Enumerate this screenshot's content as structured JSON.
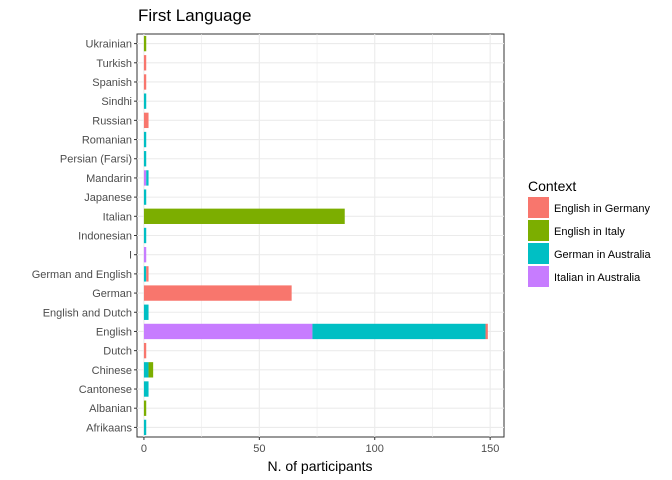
{
  "chart_data": {
    "type": "bar",
    "orientation": "horizontal",
    "stacked": true,
    "title": "First Language",
    "xlabel": "N. of participants",
    "ylabel": "",
    "xlim": [
      -3,
      156
    ],
    "xticks": [
      0,
      50,
      100,
      150
    ],
    "grid": true,
    "legend_title": "Context",
    "legend_position": "right",
    "categories": [
      "Afrikaans",
      "Albanian",
      "Cantonese",
      "Chinese",
      "Dutch",
      "English",
      "English and Dutch",
      "German",
      "German and English",
      "I",
      "Indonesian",
      "Italian",
      "Japanese",
      "Mandarin",
      "Persian (Farsi)",
      "Romanian",
      "Russian",
      "Sindhi",
      "Spanish",
      "Turkish",
      "Ukrainian"
    ],
    "series": [
      {
        "name": "Italian in Australia",
        "color": "#C77CFF",
        "values": [
          0,
          0,
          0,
          0,
          0,
          73,
          0,
          0,
          0,
          1,
          0,
          0,
          0,
          1,
          0,
          0,
          0,
          0,
          0,
          0,
          0
        ]
      },
      {
        "name": "German in Australia",
        "color": "#00BFC4",
        "values": [
          1,
          0,
          2,
          2,
          0,
          75,
          2,
          0,
          1,
          0,
          1,
          0,
          1,
          1,
          1,
          1,
          0,
          1,
          0,
          0,
          0
        ]
      },
      {
        "name": "English in Italy",
        "color": "#7CAE00",
        "values": [
          0,
          1,
          0,
          2,
          0,
          0,
          0,
          0,
          0,
          0,
          0,
          87,
          0,
          0,
          0,
          0,
          0,
          0,
          0,
          0,
          1
        ]
      },
      {
        "name": "English in Germany",
        "color": "#F8766D",
        "values": [
          0,
          0,
          0,
          0,
          1,
          1,
          0,
          64,
          1,
          0,
          0,
          0,
          0,
          0,
          0,
          0,
          2,
          0,
          1,
          1,
          0
        ]
      }
    ],
    "legend_order": [
      "English in Germany",
      "English in Italy",
      "German in Australia",
      "Italian in Australia"
    ]
  }
}
